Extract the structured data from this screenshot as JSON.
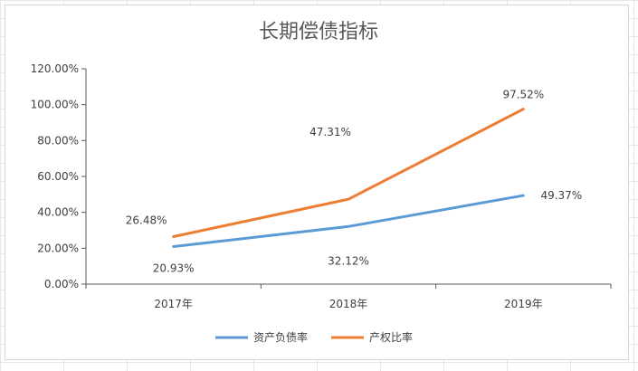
{
  "chart_data": {
    "type": "line",
    "title": "长期偿债指标",
    "categories": [
      "2017年",
      "2018年",
      "2019年"
    ],
    "y_ticks": [
      "0.00%",
      "20.00%",
      "40.00%",
      "60.00%",
      "80.00%",
      "100.00%",
      "120.00%"
    ],
    "ylim": [
      0,
      120
    ],
    "grid": false,
    "legend_position": "bottom",
    "series": [
      {
        "name": "资产负债率",
        "values": [
          20.93,
          32.12,
          49.37
        ],
        "labels": [
          "20.93%",
          "32.12%",
          "49.37%"
        ],
        "color": "#5B9BD5"
      },
      {
        "name": "产权比率",
        "values": [
          26.48,
          47.31,
          97.52
        ],
        "labels": [
          "26.48%",
          "47.31%",
          "97.52%"
        ],
        "color": "#ED7D31"
      }
    ]
  }
}
